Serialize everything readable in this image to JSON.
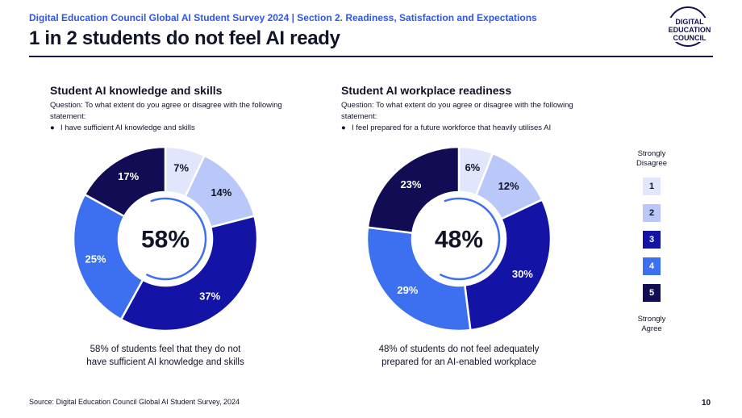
{
  "header": {
    "eyebrow": "Digital Education Council Global AI Student Survey 2024 | Section 2. Readiness, Satisfaction and Expectations",
    "title": "1 in 2 students do not feel AI ready"
  },
  "logo": {
    "line1": "DIGITAL",
    "line2": "EDUCATION",
    "line3": "COUNCIL"
  },
  "left_panel": {
    "title": "Student AI knowledge and skills",
    "question": "Question: To what extent do you agree or disagree with the following statement:",
    "bullet": "I have sufficient AI knowledge and skills",
    "center_value": "58%",
    "caption_line1": "58% of students feel that they do not",
    "caption_line2": "have sufficient AI knowledge and skills"
  },
  "right_panel": {
    "title": "Student AI workplace readiness",
    "question": "Question: To what extent do you agree or disagree with the following statement:",
    "bullet": "I feel prepared for a future workforce that heavily utilises AI",
    "center_value": "48%",
    "caption_line1": "48% of students do not feel adequately",
    "caption_line2": "prepared for an AI-enabled workplace"
  },
  "legend": {
    "top_label_line1": "Strongly",
    "top_label_line2": "Disagree",
    "bottom_label_line1": "Strongly",
    "bottom_label_line2": "Agree",
    "items": [
      {
        "label": "1",
        "color": "#e1e6fc",
        "text_color": "#111427"
      },
      {
        "label": "2",
        "color": "#bac7f9",
        "text_color": "#111427"
      },
      {
        "label": "3",
        "color": "#1314a6",
        "text_color": "#ffffff"
      },
      {
        "label": "4",
        "color": "#3d70f0",
        "text_color": "#ffffff"
      },
      {
        "label": "5",
        "color": "#120c55",
        "text_color": "#ffffff"
      }
    ]
  },
  "chart_data": [
    {
      "type": "pie",
      "title": "Student AI knowledge and skills",
      "categories": [
        "1",
        "2",
        "3",
        "4",
        "5"
      ],
      "values": [
        7,
        14,
        37,
        25,
        17
      ],
      "labels": [
        "7%",
        "14%",
        "37%",
        "25%",
        "17%"
      ],
      "colors": [
        "#e1e6fc",
        "#bac7f9",
        "#1314a6",
        "#3d70f0",
        "#120c55"
      ],
      "label_colors": [
        "#111427",
        "#111427",
        "#ffffff",
        "#ffffff",
        "#ffffff"
      ],
      "center_label": "58%"
    },
    {
      "type": "pie",
      "title": "Student AI workplace readiness",
      "categories": [
        "1",
        "2",
        "3",
        "4",
        "5"
      ],
      "values": [
        6,
        12,
        30,
        29,
        23
      ],
      "labels": [
        "6%",
        "12%",
        "30%",
        "29%",
        "23%"
      ],
      "colors": [
        "#e1e6fc",
        "#bac7f9",
        "#1314a6",
        "#3d70f0",
        "#120c55"
      ],
      "label_colors": [
        "#111427",
        "#111427",
        "#ffffff",
        "#ffffff",
        "#ffffff"
      ],
      "center_label": "48%"
    }
  ],
  "footer": {
    "source": "Source: Digital Education Council Global AI Student Survey, 2024",
    "page": "10"
  }
}
